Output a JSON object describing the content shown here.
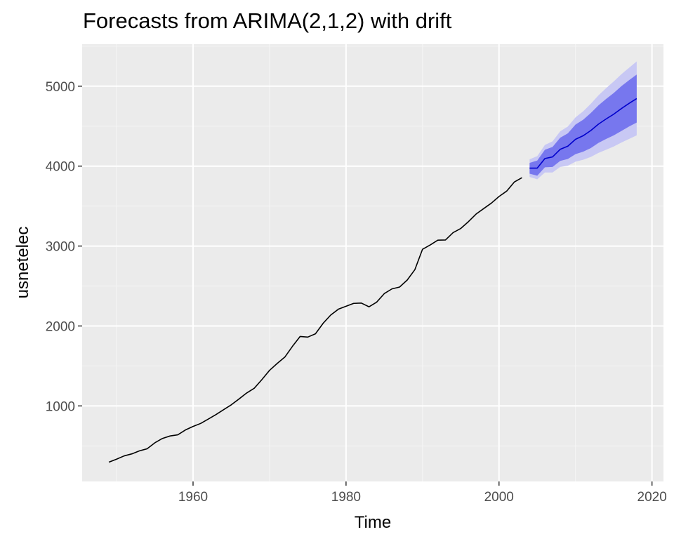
{
  "chart_data": {
    "type": "line",
    "title": "Forecasts from ARIMA(2,1,2) with drift",
    "xlabel": "Time",
    "ylabel": "usnetelec",
    "xlim": [
      1945.5,
      2021.5
    ],
    "ylim": [
      55,
      5525
    ],
    "x_ticks": [
      1960,
      1980,
      2000,
      2020
    ],
    "x_tick_labels": [
      "1960",
      "1980",
      "2000",
      "2020"
    ],
    "y_ticks": [
      1000,
      2000,
      3000,
      4000,
      5000
    ],
    "y_tick_labels": [
      "1000",
      "2000",
      "3000",
      "4000",
      "5000"
    ],
    "grid": true,
    "panel_background": "#ebebeb",
    "series": [
      {
        "role": "history",
        "color": "#000000",
        "x": [
          1949,
          1950,
          1951,
          1952,
          1953,
          1954,
          1955,
          1956,
          1957,
          1958,
          1959,
          1960,
          1961,
          1962,
          1963,
          1964,
          1965,
          1966,
          1967,
          1968,
          1969,
          1970,
          1971,
          1972,
          1973,
          1974,
          1975,
          1976,
          1977,
          1978,
          1979,
          1980,
          1981,
          1982,
          1983,
          1984,
          1985,
          1986,
          1987,
          1988,
          1989,
          1990,
          1991,
          1992,
          1993,
          1994,
          1995,
          1996,
          1997,
          1998,
          1999,
          2000,
          2001,
          2002,
          2003
        ],
        "y": [
          296,
          334,
          375,
          400,
          438,
          464,
          538,
          593,
          624,
          638,
          699,
          743,
          781,
          836,
          892,
          953,
          1014,
          1086,
          1161,
          1221,
          1329,
          1445,
          1531,
          1611,
          1746,
          1869,
          1861,
          1902,
          2033,
          2137,
          2210,
          2247,
          2283,
          2287,
          2240,
          2298,
          2405,
          2464,
          2487,
          2575,
          2705,
          2960,
          3013,
          3074,
          3076,
          3168,
          3220,
          3305,
          3400,
          3469,
          3537,
          3620,
          3687,
          3801,
          3855
        ]
      },
      {
        "role": "forecast",
        "color": "#0000cc",
        "band80_color": "#7777ee",
        "band95_color": "#c8c8f4",
        "x": [
          2004,
          2005,
          2006,
          2007,
          2008,
          2009,
          2010,
          2011,
          2012,
          2013,
          2014,
          2015,
          2016,
          2017,
          2018
        ],
        "y": [
          3975,
          3975,
          4095,
          4115,
          4210,
          4250,
          4335,
          4380,
          4445,
          4525,
          4590,
          4650,
          4720,
          4785,
          4845
        ],
        "lo80": [
          3905,
          3880,
          3985,
          3990,
          4065,
          4090,
          4150,
          4180,
          4225,
          4290,
          4340,
          4385,
          4440,
          4495,
          4545
        ],
        "hi80": [
          4040,
          4070,
          4205,
          4240,
          4355,
          4410,
          4520,
          4580,
          4665,
          4760,
          4840,
          4915,
          5000,
          5075,
          5145
        ],
        "lo95": [
          3865,
          3835,
          3920,
          3920,
          3990,
          4005,
          4055,
          4080,
          4115,
          4165,
          4205,
          4245,
          4295,
          4340,
          4385
        ],
        "hi95": [
          4085,
          4125,
          4265,
          4310,
          4435,
          4495,
          4610,
          4685,
          4780,
          4885,
          4975,
          5060,
          5150,
          5230,
          5310
        ]
      }
    ]
  }
}
